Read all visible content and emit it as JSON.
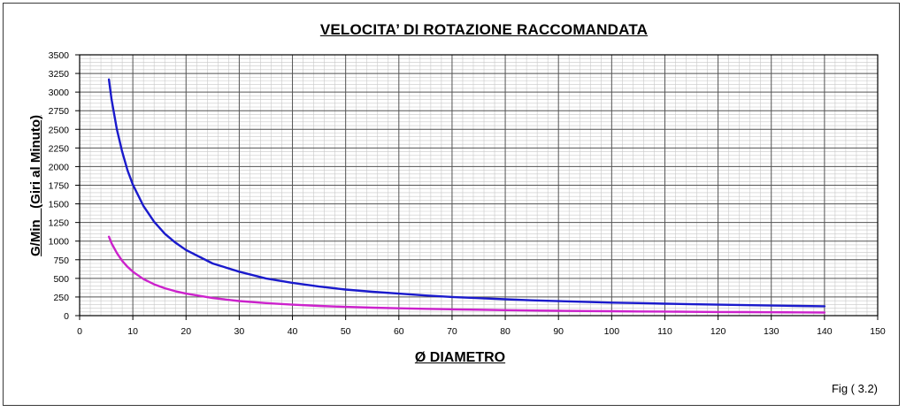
{
  "chart_data": {
    "type": "line",
    "title": "VELOCITA’ DI ROTAZIONE RACCOMANDATA",
    "xlabel": "Ø DIAMETRO",
    "ylabel": "G/Min   (Giri al Minuto)",
    "xlim": [
      0,
      150
    ],
    "ylim": [
      0,
      3500
    ],
    "x_ticks": [
      "0",
      "10",
      "20",
      "30",
      "40",
      "50",
      "60",
      "70",
      "80",
      "90",
      "100",
      "110",
      "120",
      "130",
      "140",
      "150"
    ],
    "y_ticks": [
      "0",
      "250",
      "500",
      "750",
      "1000",
      "1250",
      "1500",
      "1750",
      "2000",
      "2250",
      "2500",
      "2750",
      "3000",
      "3250",
      "3500"
    ],
    "grid": true,
    "series": [
      {
        "color": "#1a1acc",
        "x": [
          5.5,
          6,
          7,
          8,
          9,
          10,
          12,
          14,
          16,
          18,
          20,
          25,
          30,
          35,
          40,
          45,
          50,
          55,
          60,
          65,
          70,
          75,
          80,
          85,
          90,
          95,
          100,
          105,
          110,
          115,
          120,
          125,
          130,
          135,
          140
        ],
        "y": [
          3170,
          2900,
          2500,
          2200,
          1950,
          1760,
          1470,
          1260,
          1100,
          980,
          880,
          700,
          590,
          500,
          440,
          390,
          350,
          320,
          295,
          270,
          250,
          235,
          220,
          205,
          195,
          185,
          175,
          168,
          160,
          153,
          147,
          141,
          135,
          130,
          126
        ]
      },
      {
        "color": "#cc22cc",
        "x": [
          5.5,
          6,
          7,
          8,
          9,
          10,
          12,
          14,
          16,
          18,
          20,
          25,
          30,
          35,
          40,
          45,
          50,
          55,
          60,
          65,
          70,
          75,
          80,
          85,
          90,
          95,
          100,
          105,
          110,
          115,
          120,
          125,
          130,
          135,
          140
        ],
        "y": [
          1060,
          970,
          840,
          735,
          655,
          590,
          490,
          420,
          368,
          327,
          295,
          236,
          196,
          168,
          147,
          131,
          118,
          107,
          98,
          91,
          84,
          79,
          74,
          69,
          65,
          62,
          59,
          56,
          54,
          51,
          49,
          47,
          45,
          44,
          42
        ]
      }
    ]
  },
  "figure_ref": "Fig ( 3.2)"
}
